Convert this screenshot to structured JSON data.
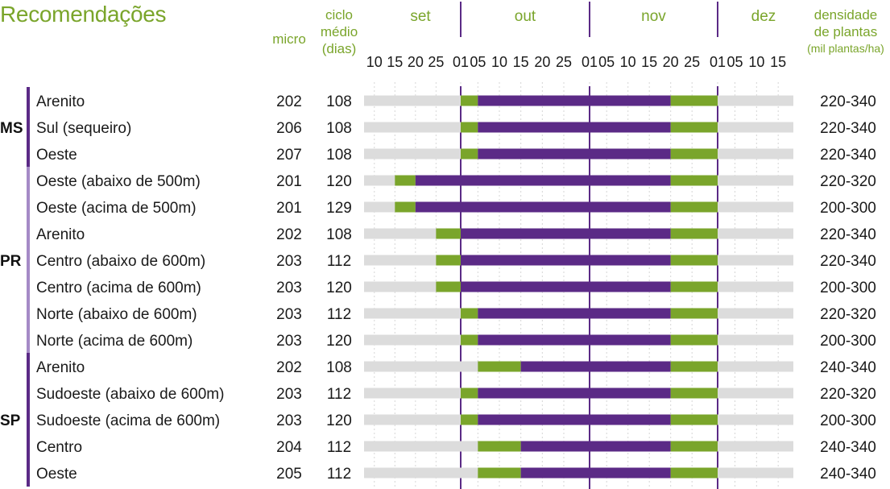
{
  "title": "Recomendações",
  "headers": {
    "micro": "micro",
    "ciclo": [
      "ciclo",
      "médio",
      "(dias)"
    ],
    "densidade": [
      "densidade",
      "de plantas",
      "(mil plantas/ha)"
    ]
  },
  "colors": {
    "accent_green": "#7aa52b",
    "purple": "#5b2a86",
    "gray_bar": "#dcdcdc",
    "state_bar_dark": "#5b2a86",
    "state_bar_light": "#a58ac6"
  },
  "chart_data": {
    "type": "bar",
    "subtype": "gantt",
    "months": [
      "set",
      "out",
      "nov",
      "dez"
    ],
    "ticks": [
      "10",
      "15",
      "20",
      "25",
      "01",
      "05",
      "10",
      "15",
      "20",
      "25",
      "01",
      "05",
      "10",
      "15",
      "20",
      "25",
      "01",
      "05",
      "10",
      "15"
    ],
    "groups": [
      {
        "state": "MS",
        "rows": [
          {
            "region": "Arenito",
            "micro": "202",
            "ciclo": "108",
            "start": "01/out",
            "optimal_start": "05/out",
            "optimal_end": "20/nov",
            "end": "01/dez",
            "densidade": "220-340"
          },
          {
            "region": "Sul (sequeiro)",
            "micro": "206",
            "ciclo": "108",
            "start": "01/out",
            "optimal_start": "05/out",
            "optimal_end": "20/nov",
            "end": "01/dez",
            "densidade": "220-340"
          },
          {
            "region": "Oeste",
            "micro": "207",
            "ciclo": "108",
            "start": "01/out",
            "optimal_start": "05/out",
            "optimal_end": "20/nov",
            "end": "01/dez",
            "densidade": "220-340"
          }
        ]
      },
      {
        "state": "PR",
        "rows": [
          {
            "region": "Oeste (abaixo de 500m)",
            "micro": "201",
            "ciclo": "120",
            "start": "15/set",
            "optimal_start": "20/set",
            "optimal_end": "20/nov",
            "end": "01/dez",
            "densidade": "220-320"
          },
          {
            "region": "Oeste (acima de 500m)",
            "micro": "201",
            "ciclo": "129",
            "start": "15/set",
            "optimal_start": "20/set",
            "optimal_end": "20/nov",
            "end": "01/dez",
            "densidade": "200-300"
          },
          {
            "region": "Arenito",
            "micro": "202",
            "ciclo": "108",
            "start": "25/set",
            "optimal_start": "01/out",
            "optimal_end": "20/nov",
            "end": "01/dez",
            "densidade": "220-340"
          },
          {
            "region": "Centro (abaixo de 600m)",
            "micro": "203",
            "ciclo": "112",
            "start": "25/set",
            "optimal_start": "01/out",
            "optimal_end": "20/nov",
            "end": "01/dez",
            "densidade": "220-340"
          },
          {
            "region": "Centro (acima de 600m)",
            "micro": "203",
            "ciclo": "120",
            "start": "25/set",
            "optimal_start": "01/out",
            "optimal_end": "20/nov",
            "end": "01/dez",
            "densidade": "200-300"
          },
          {
            "region": "Norte (abaixo de 600m)",
            "micro": "203",
            "ciclo": "112",
            "start": "01/out",
            "optimal_start": "05/out",
            "optimal_end": "20/nov",
            "end": "01/dez",
            "densidade": "220-320"
          },
          {
            "region": "Norte (acima de 600m)",
            "micro": "203",
            "ciclo": "120",
            "start": "01/out",
            "optimal_start": "05/out",
            "optimal_end": "20/nov",
            "end": "01/dez",
            "densidade": "200-300"
          }
        ]
      },
      {
        "state": "SP",
        "rows": [
          {
            "region": "Arenito",
            "micro": "202",
            "ciclo": "108",
            "start": "05/out",
            "optimal_start": "15/out",
            "optimal_end": "20/nov",
            "end": "01/dez",
            "densidade": "240-340"
          },
          {
            "region": "Sudoeste (abaixo de 600m)",
            "micro": "203",
            "ciclo": "112",
            "start": "01/out",
            "optimal_start": "05/out",
            "optimal_end": "20/nov",
            "end": "01/dez",
            "densidade": "220-320"
          },
          {
            "region": "Sudoeste (acima de 600m)",
            "micro": "203",
            "ciclo": "120",
            "start": "01/out",
            "optimal_start": "05/out",
            "optimal_end": "20/nov",
            "end": "01/dez",
            "densidade": "200-300"
          },
          {
            "region": "Centro",
            "micro": "204",
            "ciclo": "112",
            "start": "05/out",
            "optimal_start": "15/out",
            "optimal_end": "20/nov",
            "end": "01/dez",
            "densidade": "240-340"
          },
          {
            "region": "Oeste",
            "micro": "205",
            "ciclo": "112",
            "start": "05/out",
            "optimal_start": "15/out",
            "optimal_end": "20/nov",
            "end": "01/dez",
            "densidade": "240-340"
          }
        ]
      }
    ]
  }
}
